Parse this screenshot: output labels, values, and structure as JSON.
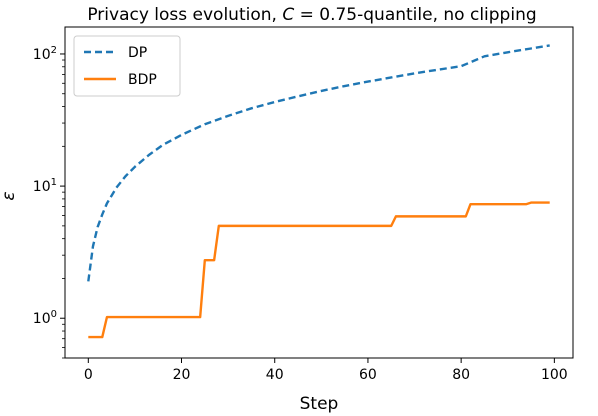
{
  "chart_data": {
    "type": "line",
    "title": "Privacy loss evolution, C = 0.75-quantile, no clipping",
    "title_parts": {
      "prefix": "Privacy loss evolution, ",
      "variable": "C",
      "suffix": " = 0.75-quantile, no clipping"
    },
    "xlabel": "Step",
    "ylabel": "ε",
    "xlim": [
      -5,
      104
    ],
    "ylim": [
      0.5,
      160
    ],
    "yscale": "log",
    "grid": false,
    "legend_position": "top-left",
    "x_ticks": [
      0,
      20,
      40,
      60,
      80,
      100
    ],
    "x_tick_labels": [
      "0",
      "20",
      "40",
      "60",
      "80",
      "100"
    ],
    "y_ticks": [
      1,
      10,
      100
    ],
    "y_tick_labels": [
      {
        "base": "10",
        "exp": "0"
      },
      {
        "base": "10",
        "exp": "1"
      },
      {
        "base": "10",
        "exp": "2"
      }
    ],
    "series": [
      {
        "name": "DP",
        "color": "#1f77b4",
        "style": "dashed",
        "x": [
          0,
          1,
          2,
          3,
          4,
          6,
          8,
          10,
          13,
          16,
          20,
          25,
          30,
          35,
          40,
          45,
          50,
          55,
          60,
          65,
          70,
          75,
          80,
          85,
          90,
          95,
          99
        ],
        "y": [
          1.9,
          3.5,
          4.9,
          6.1,
          7.4,
          9.7,
          11.9,
          14,
          17.2,
          20.5,
          24.4,
          29.4,
          34,
          38.8,
          43.3,
          47.8,
          52.5,
          57.2,
          61.8,
          66.4,
          71.3,
          76,
          80.8,
          96,
          103,
          110,
          116
        ]
      },
      {
        "name": "BDP",
        "color": "#ff7f0e",
        "style": "solid",
        "x": [
          0,
          3,
          4,
          24,
          25,
          26,
          27,
          28,
          65,
          66,
          81,
          82,
          94,
          95,
          99
        ],
        "y": [
          0.72,
          0.72,
          1.02,
          1.02,
          2.75,
          2.75,
          2.75,
          5.0,
          5.0,
          5.9,
          5.9,
          7.3,
          7.3,
          7.5,
          7.5
        ]
      }
    ]
  }
}
